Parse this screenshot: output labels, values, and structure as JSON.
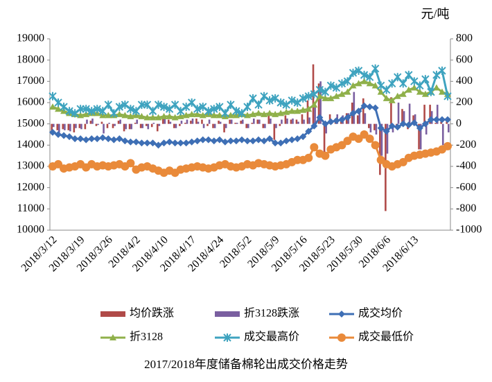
{
  "chart_data": {
    "type": "combo",
    "title": "2017/2018年度储备棉轮出成交价格走势",
    "y2_label": "元/吨",
    "categories": [
      "2018/3/12",
      null,
      null,
      null,
      null,
      "2018/3/19",
      null,
      null,
      null,
      null,
      "2018/3/26",
      null,
      null,
      null,
      null,
      "2018/4/2",
      null,
      null,
      null,
      null,
      "2018/4/10",
      null,
      null,
      null,
      null,
      "2018/4/17",
      null,
      null,
      null,
      null,
      "2018/4/24",
      null,
      null,
      null,
      null,
      "2018/5/2",
      null,
      null,
      null,
      null,
      "2018/5/9",
      null,
      null,
      null,
      null,
      "2018/5/16",
      null,
      null,
      null,
      null,
      "2018/5/23",
      null,
      null,
      null,
      null,
      "2018/5/30",
      null,
      null,
      null,
      null,
      "2018/6/6",
      null,
      null,
      null,
      null,
      "2018/6/13",
      null,
      null,
      null,
      null,
      null,
      null
    ],
    "ylim": [
      10000,
      19000
    ],
    "yticks": [
      10000,
      11000,
      12000,
      13000,
      14000,
      15000,
      16000,
      17000,
      18000,
      19000
    ],
    "y2lim": [
      -1000,
      800
    ],
    "y2ticks": [
      -1000,
      -800,
      -600,
      -400,
      -200,
      0,
      200,
      400,
      600,
      800
    ],
    "grid": false,
    "series": [
      {
        "name": "均价跌涨",
        "type": "bar",
        "axis": "y2",
        "color": "#b04a48",
        "values": [
          -100,
          -60,
          -50,
          -60,
          -80,
          -40,
          -50,
          30,
          -20,
          20,
          -40,
          -40,
          30,
          -70,
          -50,
          10,
          -40,
          -20,
          -30,
          -70,
          60,
          40,
          -40,
          -20,
          10,
          30,
          50,
          40,
          -20,
          -40,
          30,
          -80,
          40,
          10,
          30,
          -40,
          10,
          40,
          -40,
          80,
          -150,
          -20,
          80,
          40,
          40,
          90,
          220,
          560,
          380,
          -280,
          90,
          50,
          60,
          100,
          200,
          80,
          240,
          -40,
          -60,
          -480,
          -820,
          250,
          -40,
          140,
          -50,
          80,
          -240,
          180,
          180,
          10,
          20,
          20
        ]
      },
      {
        "name": "折3128跌涨",
        "type": "bar",
        "axis": "y2",
        "color": "#7a5fa0",
        "values": [
          -30,
          -80,
          -60,
          -70,
          -40,
          -50,
          40,
          50,
          -10,
          -90,
          10,
          -20,
          40,
          -50,
          -50,
          40,
          -40,
          -50,
          10,
          -20,
          50,
          20,
          -40,
          30,
          40,
          50,
          20,
          -40,
          40,
          -40,
          20,
          -40,
          40,
          10,
          40,
          -40,
          50,
          40,
          -40,
          50,
          -40,
          40,
          50,
          50,
          20,
          40,
          60,
          180,
          400,
          -90,
          30,
          90,
          80,
          100,
          300,
          110,
          100,
          -80,
          -100,
          -300,
          -280,
          -80,
          200,
          120,
          190,
          90,
          -240,
          -100,
          120,
          180,
          -200,
          -80
        ]
      },
      {
        "name": "成交均价",
        "type": "line",
        "marker": "diamond",
        "color": "#3e6fb5",
        "values": [
          14600,
          14500,
          14450,
          14400,
          14300,
          14300,
          14250,
          14300,
          14300,
          14350,
          14300,
          14250,
          14300,
          14200,
          14150,
          14150,
          14100,
          14100,
          14100,
          14000,
          14100,
          14150,
          14100,
          14100,
          14100,
          14150,
          14200,
          14250,
          14250,
          14200,
          14250,
          14150,
          14200,
          14200,
          14250,
          14200,
          14200,
          14250,
          14200,
          14300,
          14100,
          14100,
          14200,
          14250,
          14300,
          14400,
          14650,
          14900,
          15300,
          15000,
          15100,
          15150,
          15200,
          15300,
          15500,
          15600,
          15850,
          15800,
          15750,
          14800,
          14650,
          14900,
          14850,
          15000,
          14950,
          15050,
          14800,
          15000,
          15200,
          15200,
          15200,
          15200
        ]
      },
      {
        "name": "折3128",
        "type": "line",
        "marker": "triangle",
        "color": "#8fb04a",
        "values": [
          15800,
          15700,
          15600,
          15500,
          15450,
          15400,
          15450,
          15500,
          15500,
          15400,
          15400,
          15400,
          15450,
          15400,
          15350,
          15400,
          15350,
          15300,
          15300,
          15300,
          15350,
          15350,
          15300,
          15350,
          15400,
          15450,
          15450,
          15400,
          15450,
          15400,
          15400,
          15350,
          15400,
          15400,
          15450,
          15400,
          15450,
          15500,
          15450,
          15500,
          15450,
          15500,
          15550,
          15600,
          15600,
          15650,
          15700,
          15900,
          16300,
          16200,
          16200,
          16300,
          16400,
          16500,
          16800,
          16900,
          17000,
          16900,
          16800,
          16500,
          16200,
          16100,
          16300,
          16400,
          16600,
          16700,
          16500,
          16400,
          16500,
          16700,
          16500,
          16400
        ]
      },
      {
        "name": "成交最高价",
        "type": "line",
        "marker": "star",
        "color": "#3ea3bf",
        "values": [
          16300,
          16000,
          15800,
          15600,
          15500,
          15700,
          15700,
          15600,
          15700,
          15600,
          15900,
          15500,
          15800,
          15900,
          15700,
          15600,
          15900,
          15900,
          15600,
          15900,
          15800,
          15700,
          15900,
          15600,
          15800,
          16000,
          15700,
          15800,
          15600,
          15700,
          15800,
          15500,
          15900,
          15600,
          15500,
          15800,
          16200,
          15900,
          16300,
          16100,
          16200,
          16000,
          15900,
          16100,
          16000,
          16200,
          16300,
          16400,
          16600,
          16500,
          16800,
          16700,
          16900,
          17000,
          17400,
          17500,
          17300,
          17200,
          17600,
          16800,
          16600,
          16900,
          17200,
          16900,
          17300,
          17000,
          16800,
          17100,
          16500,
          17300,
          17500,
          16300
        ]
      },
      {
        "name": "成交最低价",
        "type": "line",
        "marker": "circle",
        "color": "#e98a3a",
        "values": [
          13000,
          13100,
          12900,
          12950,
          13000,
          13100,
          12950,
          13100,
          13000,
          13050,
          13000,
          13050,
          13100,
          13000,
          13150,
          12850,
          12950,
          13000,
          12900,
          12800,
          12700,
          12800,
          12700,
          12850,
          12900,
          12950,
          13000,
          12950,
          12900,
          12950,
          13050,
          13100,
          13000,
          12950,
          13000,
          13100,
          13050,
          13150,
          13100,
          13050,
          13000,
          13050,
          13100,
          13200,
          13300,
          13300,
          13400,
          13900,
          13600,
          13500,
          13800,
          13900,
          14000,
          14200,
          14400,
          14300,
          14500,
          14300,
          14000,
          13300,
          13100,
          13000,
          13100,
          13200,
          13400,
          13500,
          13550,
          13600,
          13650,
          13700,
          13800,
          13950
        ]
      }
    ]
  }
}
